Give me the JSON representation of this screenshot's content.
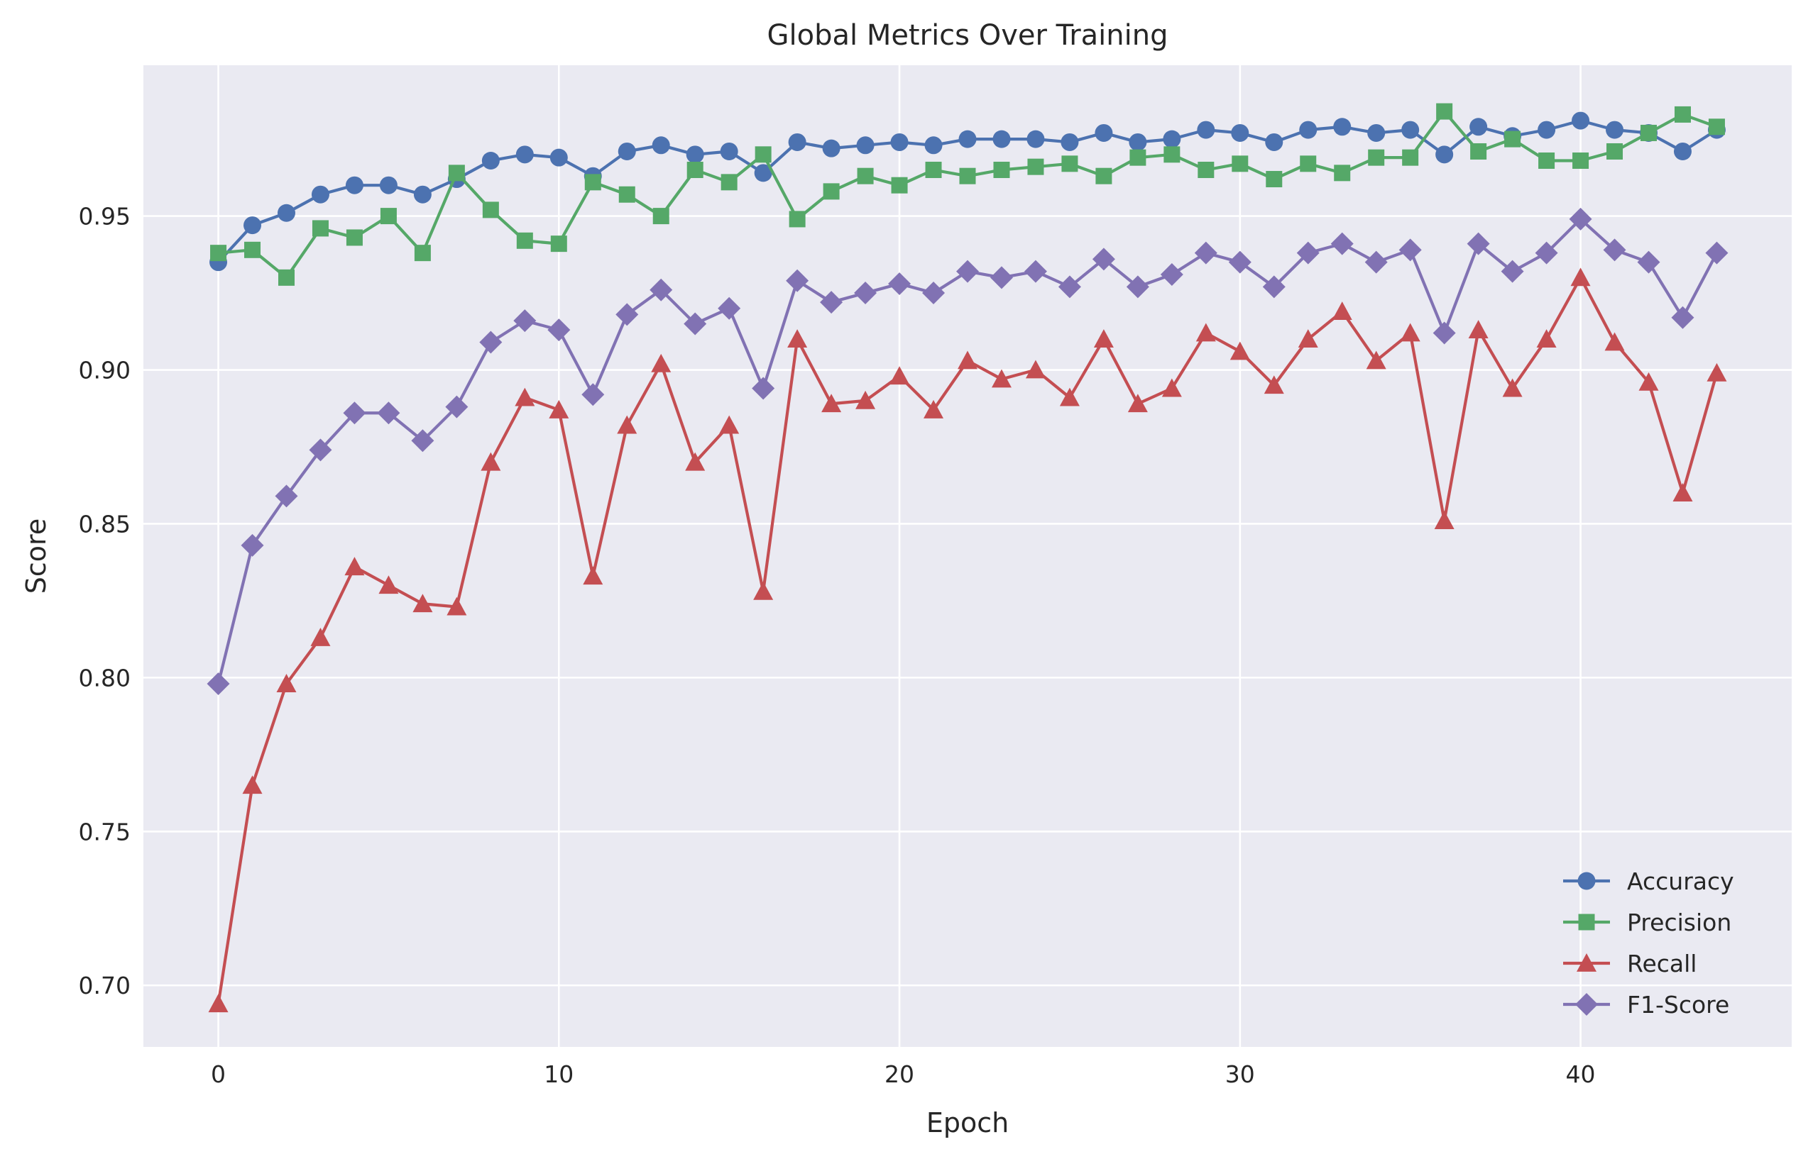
{
  "chart_data": {
    "type": "line",
    "title": "Global Metrics Over Training",
    "xlabel": "Epoch",
    "ylabel": "Score",
    "xlim": [
      -2.2,
      46.2
    ],
    "ylim": [
      0.68,
      0.999
    ],
    "xticks": [
      0,
      10,
      20,
      30,
      40
    ],
    "yticks": [
      0.7,
      0.75,
      0.8,
      0.85,
      0.9,
      0.95
    ],
    "ytick_labels": [
      "0.70",
      "0.75",
      "0.80",
      "0.85",
      "0.90",
      "0.95"
    ],
    "grid": true,
    "legend_position": "lower-right",
    "background": "#eaeaf2",
    "x": [
      0,
      1,
      2,
      3,
      4,
      5,
      6,
      7,
      8,
      9,
      10,
      11,
      12,
      13,
      14,
      15,
      16,
      17,
      18,
      19,
      20,
      21,
      22,
      23,
      24,
      25,
      26,
      27,
      28,
      29,
      30,
      31,
      32,
      33,
      34,
      35,
      36,
      37,
      38,
      39,
      40,
      41,
      42,
      43,
      44
    ],
    "series": [
      {
        "name": "Accuracy",
        "color": "#4c72b0",
        "marker": "circle",
        "values": [
          0.935,
          0.947,
          0.951,
          0.957,
          0.96,
          0.96,
          0.957,
          0.962,
          0.968,
          0.97,
          0.969,
          0.963,
          0.971,
          0.973,
          0.97,
          0.971,
          0.964,
          0.974,
          0.972,
          0.973,
          0.974,
          0.973,
          0.975,
          0.975,
          0.975,
          0.974,
          0.977,
          0.974,
          0.975,
          0.978,
          0.977,
          0.974,
          0.978,
          0.979,
          0.977,
          0.978,
          0.97,
          0.979,
          0.976,
          0.978,
          0.981,
          0.978,
          0.977,
          0.971,
          0.978
        ]
      },
      {
        "name": "Precision",
        "color": "#55a868",
        "marker": "square",
        "values": [
          0.938,
          0.939,
          0.93,
          0.946,
          0.943,
          0.95,
          0.938,
          0.964,
          0.952,
          0.942,
          0.941,
          0.961,
          0.957,
          0.95,
          0.965,
          0.961,
          0.97,
          0.949,
          0.958,
          0.963,
          0.96,
          0.965,
          0.963,
          0.965,
          0.966,
          0.967,
          0.963,
          0.969,
          0.97,
          0.965,
          0.967,
          0.962,
          0.967,
          0.964,
          0.969,
          0.969,
          0.984,
          0.971,
          0.975,
          0.968,
          0.968,
          0.971,
          0.977,
          0.983,
          0.979
        ]
      },
      {
        "name": "Recall",
        "color": "#c44e52",
        "marker": "triangle",
        "values": [
          0.694,
          0.765,
          0.798,
          0.813,
          0.836,
          0.83,
          0.824,
          0.823,
          0.87,
          0.891,
          0.887,
          0.833,
          0.882,
          0.902,
          0.87,
          0.882,
          0.828,
          0.91,
          0.889,
          0.89,
          0.898,
          0.887,
          0.903,
          0.897,
          0.9,
          0.891,
          0.91,
          0.889,
          0.894,
          0.912,
          0.906,
          0.895,
          0.91,
          0.919,
          0.903,
          0.912,
          0.851,
          0.913,
          0.894,
          0.91,
          0.93,
          0.909,
          0.896,
          0.86,
          0.899
        ]
      },
      {
        "name": "F1-Score",
        "color": "#8172b3",
        "marker": "diamond",
        "values": [
          0.798,
          0.843,
          0.859,
          0.874,
          0.886,
          0.886,
          0.877,
          0.888,
          0.909,
          0.916,
          0.913,
          0.892,
          0.918,
          0.926,
          0.915,
          0.92,
          0.894,
          0.929,
          0.922,
          0.925,
          0.928,
          0.925,
          0.932,
          0.93,
          0.932,
          0.927,
          0.936,
          0.927,
          0.931,
          0.938,
          0.935,
          0.927,
          0.938,
          0.941,
          0.935,
          0.939,
          0.912,
          0.941,
          0.932,
          0.938,
          0.949,
          0.939,
          0.935,
          0.917,
          0.938
        ]
      }
    ]
  }
}
